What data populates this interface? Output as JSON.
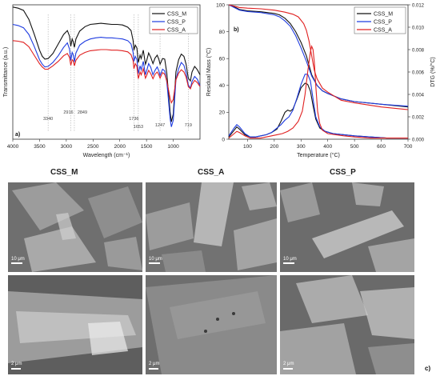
{
  "chart_data": [
    {
      "type": "line",
      "panel_label": "a)",
      "title": "",
      "xlabel": "Wavelength (cm⁻¹)",
      "ylabel": "Transmittance (a.u.)",
      "xlim": [
        4000,
        500
      ],
      "x_reversed": true,
      "x_ticks": [
        4000,
        3500,
        3000,
        2500,
        2000,
        1500,
        1000
      ],
      "y_ticks_shown": false,
      "grid": false,
      "legend": "top-right",
      "peak_labels": [
        "3340",
        "2916",
        "2849",
        "1736",
        "1653",
        "1247",
        "719"
      ],
      "peak_positions": [
        3340,
        2916,
        2849,
        1736,
        1653,
        1247,
        719
      ],
      "series": [
        {
          "name": "CSS_M",
          "color": "#111111",
          "x": [
            4000,
            3900,
            3800,
            3700,
            3600,
            3500,
            3450,
            3400,
            3340,
            3250,
            3150,
            3050,
            2980,
            2940,
            2916,
            2890,
            2870,
            2849,
            2820,
            2750,
            2650,
            2550,
            2450,
            2350,
            2250,
            2150,
            2050,
            1950,
            1850,
            1790,
            1750,
            1736,
            1710,
            1680,
            1653,
            1620,
            1600,
            1560,
            1520,
            1500,
            1460,
            1420,
            1380,
            1340,
            1300,
            1270,
            1247,
            1200,
            1160,
            1120,
            1100,
            1060,
            1035,
            1000,
            950,
            900,
            850,
            800,
            760,
            719,
            680,
            650,
            600,
            550,
            500
          ],
          "y": [
            99.6,
            99.4,
            99.0,
            97.4,
            94.8,
            91.9,
            90.8,
            90.3,
            90.4,
            91.3,
            93.0,
            94.7,
            95.4,
            94.4,
            92.6,
            93.9,
            93.4,
            92.4,
            93.9,
            95.3,
            96.1,
            96.5,
            96.6,
            96.7,
            96.6,
            96.5,
            96.5,
            96.4,
            96.0,
            95.4,
            93.6,
            91.9,
            92.8,
            92.3,
            89.7,
            91.0,
            90.4,
            91.9,
            89.4,
            89.9,
            91.4,
            90.6,
            89.5,
            90.5,
            91.0,
            90.3,
            89.4,
            90.4,
            90.3,
            87.8,
            85.4,
            80.9,
            79.1,
            80.5,
            88.0,
            90.2,
            91.2,
            90.8,
            89.4,
            86.9,
            86.4,
            88.0,
            89.0,
            88.4,
            87.5
          ]
        },
        {
          "name": "CSS_P",
          "color": "#1f3ce0",
          "x": [
            4000,
            3900,
            3800,
            3700,
            3600,
            3500,
            3450,
            3400,
            3340,
            3250,
            3150,
            3050,
            2980,
            2940,
            2916,
            2890,
            2870,
            2849,
            2820,
            2750,
            2650,
            2550,
            2450,
            2350,
            2250,
            2150,
            2050,
            1950,
            1850,
            1790,
            1750,
            1736,
            1710,
            1680,
            1653,
            1620,
            1600,
            1560,
            1520,
            1500,
            1460,
            1420,
            1380,
            1340,
            1300,
            1270,
            1247,
            1200,
            1160,
            1120,
            1100,
            1060,
            1035,
            1000,
            950,
            900,
            850,
            800,
            760,
            719,
            680,
            650,
            600,
            550,
            500
          ],
          "y": [
            96.5,
            96.3,
            95.9,
            94.7,
            92.6,
            90.2,
            89.4,
            88.9,
            89.0,
            89.7,
            90.9,
            92.4,
            93.2,
            92.1,
            90.1,
            91.5,
            91.1,
            89.8,
            91.4,
            92.8,
            93.5,
            93.9,
            94.1,
            94.2,
            94.1,
            94.1,
            94.0,
            93.9,
            93.6,
            93.0,
            91.5,
            89.9,
            90.8,
            90.2,
            87.7,
            89.1,
            88.4,
            89.9,
            87.5,
            88.1,
            89.5,
            88.8,
            87.5,
            88.3,
            88.9,
            88.2,
            87.4,
            88.5,
            88.2,
            86.2,
            84.1,
            79.7,
            78.2,
            79.4,
            86.6,
            88.6,
            89.7,
            89.2,
            87.8,
            85.7,
            85.1,
            86.3,
            87.2,
            86.7,
            85.6
          ]
        },
        {
          "name": "CSS_A",
          "color": "#e02020",
          "x": [
            4000,
            3900,
            3800,
            3700,
            3600,
            3500,
            3450,
            3400,
            3340,
            3250,
            3150,
            3050,
            2980,
            2940,
            2916,
            2890,
            2870,
            2849,
            2820,
            2750,
            2650,
            2550,
            2450,
            2350,
            2250,
            2150,
            2050,
            1950,
            1850,
            1790,
            1750,
            1736,
            1710,
            1680,
            1653,
            1620,
            1600,
            1560,
            1520,
            1500,
            1460,
            1420,
            1380,
            1340,
            1300,
            1270,
            1247,
            1200,
            1160,
            1120,
            1100,
            1060,
            1035,
            1000,
            950,
            900,
            850,
            800,
            760,
            719,
            680,
            650,
            600,
            550,
            500
          ],
          "y": [
            93.6,
            93.5,
            93.3,
            92.5,
            91.0,
            89.5,
            88.9,
            88.5,
            88.5,
            89.1,
            89.9,
            90.9,
            91.3,
            90.6,
            89.2,
            90.2,
            90.0,
            89.1,
            90.1,
            91.0,
            91.5,
            91.8,
            91.9,
            92.0,
            92.0,
            91.9,
            91.9,
            91.8,
            91.6,
            91.1,
            90.0,
            88.6,
            89.5,
            89.0,
            86.8,
            88.0,
            87.5,
            88.6,
            86.9,
            87.3,
            88.3,
            87.7,
            86.8,
            87.6,
            88.0,
            87.5,
            86.9,
            87.9,
            87.6,
            86.4,
            85.4,
            83.3,
            82.5,
            83.1,
            86.6,
            87.8,
            88.4,
            88.0,
            87.1,
            85.4,
            85.0,
            85.8,
            86.5,
            86.1,
            85.4
          ]
        }
      ]
    },
    {
      "type": "line",
      "panel_label": "b)",
      "title": "",
      "xlabel": "Temperature (°C)",
      "ylabel": "Residual Mass (°C)",
      "y2label": "DTG (%/°C)",
      "xlim": [
        30,
        700
      ],
      "ylim": [
        0,
        100
      ],
      "y2lim": [
        0,
        0.012
      ],
      "x_ticks": [
        100,
        200,
        300,
        400,
        500,
        600,
        700
      ],
      "y_ticks": [
        0,
        20,
        40,
        60,
        80,
        100
      ],
      "y2_ticks": [
        0.0,
        0.002,
        0.004,
        0.006,
        0.008,
        0.01,
        0.012
      ],
      "y2_tick_labels": [
        "0.000",
        "0.002",
        "0.004",
        "0.006",
        "0.008",
        "0.010",
        "0.012"
      ],
      "grid": false,
      "legend": "top-right",
      "mass_series": [
        {
          "name": "CSS_M",
          "color": "#111111",
          "x": [
            30,
            50,
            70,
            100,
            150,
            200,
            220,
            240,
            260,
            280,
            300,
            320,
            340,
            360,
            380,
            400,
            450,
            500,
            600,
            700
          ],
          "y": [
            100,
            98.5,
            96.5,
            95.5,
            94.8,
            93.6,
            92.5,
            90,
            86,
            80,
            72,
            62,
            48,
            40,
            36,
            34,
            30,
            28,
            26,
            24
          ]
        },
        {
          "name": "CSS_P",
          "color": "#1f3ce0",
          "x": [
            30,
            50,
            70,
            100,
            150,
            200,
            220,
            240,
            260,
            280,
            300,
            320,
            340,
            360,
            380,
            400,
            450,
            500,
            600,
            700
          ],
          "y": [
            100,
            98,
            96,
            95,
            94.2,
            92.5,
            91,
            88,
            84,
            77,
            68,
            58,
            47,
            40,
            36,
            34,
            30,
            28,
            26,
            24.5
          ]
        },
        {
          "name": "CSS_A",
          "color": "#e02020",
          "x": [
            30,
            50,
            70,
            100,
            150,
            200,
            240,
            270,
            290,
            310,
            320,
            330,
            340,
            350,
            360,
            380,
            400,
            450,
            500,
            600,
            700
          ],
          "y": [
            100,
            99,
            98,
            97.5,
            97,
            96,
            94.5,
            93,
            91,
            86,
            81,
            73,
            62,
            51,
            45,
            38,
            35,
            29,
            27,
            24,
            22
          ]
        }
      ],
      "dtg_series": [
        {
          "name": "CSS_M",
          "color": "#111111",
          "x": [
            30,
            50,
            60,
            70,
            90,
            110,
            130,
            150,
            170,
            190,
            210,
            225,
            240,
            250,
            260,
            270,
            285,
            300,
            315,
            325,
            335,
            345,
            355,
            370,
            390,
            420,
            460,
            500,
            560,
            620,
            700
          ],
          "y": [
            0.0002,
            0.0008,
            0.0011,
            0.0009,
            0.0004,
            0.0002,
            0.0002,
            0.0003,
            0.0004,
            0.0006,
            0.0009,
            0.0016,
            0.0024,
            0.0026,
            0.0025,
            0.0027,
            0.0036,
            0.0046,
            0.005,
            0.0049,
            0.0043,
            0.003,
            0.0018,
            0.001,
            0.0007,
            0.0005,
            0.0004,
            0.0003,
            0.0002,
            0.0001,
            0.0001
          ]
        },
        {
          "name": "CSS_P",
          "color": "#1f3ce0",
          "x": [
            30,
            50,
            60,
            70,
            90,
            110,
            130,
            150,
            170,
            190,
            210,
            225,
            240,
            255,
            270,
            285,
            300,
            315,
            325,
            335,
            345,
            355,
            370,
            390,
            420,
            460,
            500,
            560,
            620,
            700
          ],
          "y": [
            0.0003,
            0.001,
            0.0013,
            0.0011,
            0.0005,
            0.0002,
            0.0002,
            0.0003,
            0.0004,
            0.0006,
            0.001,
            0.0013,
            0.0017,
            0.002,
            0.0026,
            0.0037,
            0.0049,
            0.0058,
            0.0058,
            0.0052,
            0.0036,
            0.002,
            0.0011,
            0.0007,
            0.0005,
            0.0004,
            0.0003,
            0.0002,
            0.0001,
            0.0001
          ]
        },
        {
          "name": "CSS_A",
          "color": "#e02020",
          "x": [
            30,
            50,
            60,
            70,
            90,
            110,
            130,
            150,
            170,
            190,
            210,
            230,
            250,
            270,
            290,
            305,
            315,
            325,
            335,
            340,
            345,
            350,
            355,
            362,
            370,
            380,
            400,
            430,
            460,
            500,
            560,
            620,
            700
          ],
          "y": [
            0.0001,
            0.0005,
            0.0007,
            0.0006,
            0.0003,
            0.0001,
            0.0001,
            0.0001,
            0.0002,
            0.0003,
            0.0004,
            0.0005,
            0.0007,
            0.001,
            0.0016,
            0.0025,
            0.004,
            0.006,
            0.0078,
            0.0083,
            0.008,
            0.0068,
            0.0048,
            0.0025,
            0.0014,
            0.0008,
            0.0005,
            0.0004,
            0.0003,
            0.0002,
            0.0001,
            0.0001,
            0.0001
          ]
        }
      ]
    }
  ],
  "sem": {
    "panel_label": "c)",
    "columns": [
      "CSS_M",
      "CSS_A",
      "CSS_P"
    ],
    "scale_top": "10 μm",
    "scale_bottom": "2 μm"
  }
}
